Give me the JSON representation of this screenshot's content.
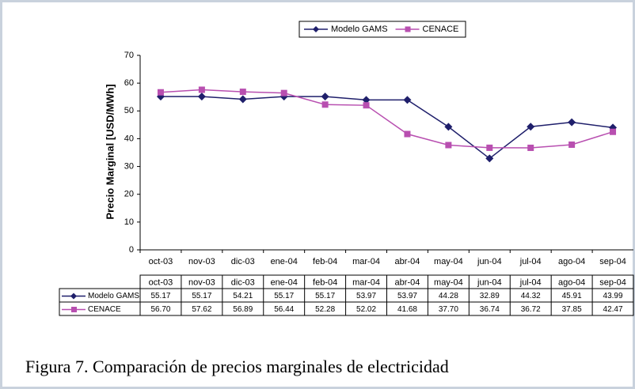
{
  "chart_data": {
    "type": "line",
    "y_label": "Precio Marginal [USD/MWh]",
    "caption": "Figura 7. Comparación de precios marginales de electricidad",
    "categories": [
      "oct-03",
      "nov-03",
      "dic-03",
      "ene-04",
      "feb-04",
      "mar-04",
      "abr-04",
      "may-04",
      "jun-04",
      "jul-04",
      "ago-04",
      "sep-04"
    ],
    "series": [
      {
        "name": "Modelo GAMS",
        "color": "#1f1f6b",
        "marker": "diamond",
        "values": [
          55.17,
          55.17,
          54.21,
          55.17,
          55.17,
          53.97,
          53.97,
          44.28,
          32.89,
          44.32,
          45.91,
          43.99
        ],
        "value_labels": [
          "55.17",
          "55.17",
          "54.21",
          "55.17",
          "55.17",
          "53.97",
          "53.97",
          "44.28",
          "32.89",
          "44.32",
          "45.91",
          "43.99"
        ]
      },
      {
        "name": "CENACE",
        "color": "#b84fb0",
        "marker": "square",
        "values": [
          56.7,
          57.62,
          56.89,
          56.44,
          52.28,
          52.02,
          41.68,
          37.7,
          36.74,
          36.72,
          37.85,
          42.47
        ],
        "value_labels": [
          "56.70",
          "57.62",
          "56.89",
          "56.44",
          "52.28",
          "52.02",
          "41.68",
          "37.70",
          "36.74",
          "36.72",
          "37.85",
          "42.47"
        ]
      }
    ],
    "ylim": [
      0,
      70
    ],
    "yticks": [
      0,
      10,
      20,
      30,
      40,
      50,
      60,
      70
    ],
    "legend": "top",
    "data_table": true
  }
}
